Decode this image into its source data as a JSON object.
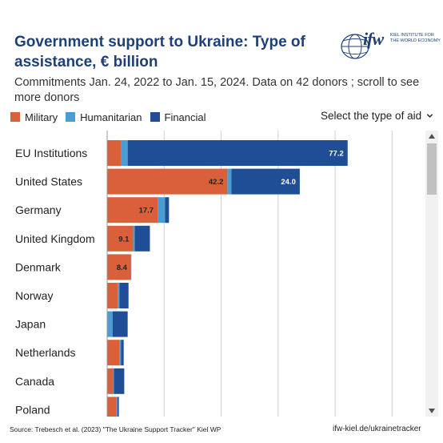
{
  "header": {
    "title": "Government support to Ukraine:  Type of assistance, € billion",
    "subtitle": "Commitments Jan. 24, 2022 to Jan. 15, 2024. Data on 42 donors ; scroll to see more donors",
    "logo_mark": "ifw",
    "logo_line1": "KIEL INSTITUTE FOR",
    "logo_line2": "THE WORLD ECONOMY"
  },
  "legend": [
    {
      "label": "Military",
      "color": "#d9603b"
    },
    {
      "label": "Humanitarian",
      "color": "#4b9cd3"
    },
    {
      "label": "Financial",
      "color": "#1f4e96"
    }
  ],
  "controls": {
    "select_label": "Select the type of aid",
    "select_icon": "chevron-down-icon"
  },
  "footer": {
    "source": "Source: Trebesch et al. (2023) \"The Ukraine Support Tracker\" Kiel WP",
    "link": "ifw-kiel.de/ukrainetracker"
  },
  "chart_data": {
    "type": "bar",
    "orientation": "horizontal",
    "stacked": true,
    "categories": [
      "EU Institutions",
      "United States",
      "Germany",
      "United Kingdom",
      "Denmark",
      "Norway",
      "Japan",
      "Netherlands",
      "Canada",
      "Poland"
    ],
    "series": [
      {
        "name": "Military",
        "color": "#d9603b",
        "values": [
          5.0,
          42.2,
          17.7,
          9.1,
          8.4,
          3.7,
          0.0,
          4.3,
          2.1,
          3.1
        ]
      },
      {
        "name": "Humanitarian",
        "color": "#4b9cd3",
        "values": [
          2.2,
          1.4,
          2.6,
          0.6,
          0.1,
          0.6,
          1.9,
          0.6,
          0.3,
          0.5
        ]
      },
      {
        "name": "Financial",
        "color": "#1f4e96",
        "values": [
          77.2,
          24.0,
          1.4,
          5.3,
          0.0,
          3.2,
          5.3,
          0.9,
          3.6,
          0.5
        ]
      }
    ],
    "data_labels": [
      {
        "category": "EU Institutions",
        "series": "Financial",
        "text": "77.2"
      },
      {
        "category": "United States",
        "series": "Military",
        "text": "42.2"
      },
      {
        "category": "United States",
        "series": "Financial",
        "text": "24.0"
      },
      {
        "category": "Germany",
        "series": "Military",
        "text": "17.7"
      },
      {
        "category": "United Kingdom",
        "series": "Military",
        "text": "9.1"
      },
      {
        "category": "Denmark",
        "series": "Military",
        "text": "8.4"
      }
    ],
    "xlim": [
      0,
      110
    ],
    "grid": true,
    "legend_position": "top-left"
  }
}
